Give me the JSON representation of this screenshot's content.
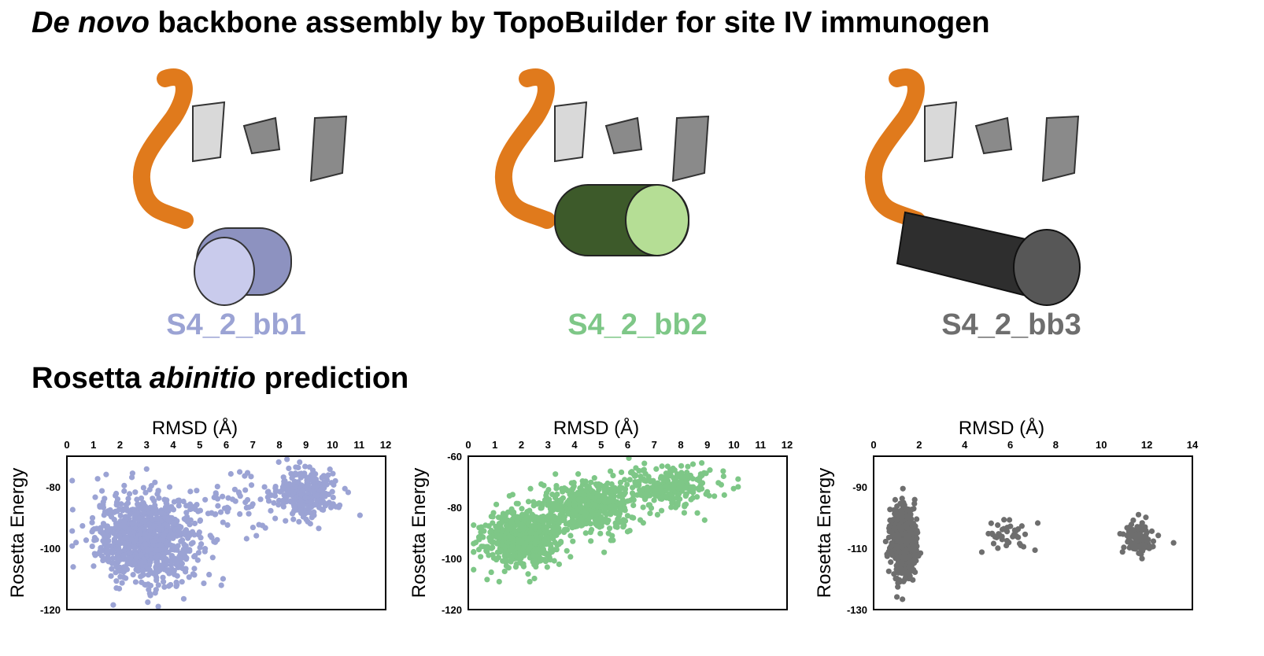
{
  "title": {
    "italic": "De novo",
    "rest": " backbone assembly by TopoBuilder for site IV immunogen"
  },
  "subtitle": {
    "prefix": "Rosetta ",
    "italic": "abinitio",
    "suffix": " prediction"
  },
  "backbones": [
    {
      "label": "S4_2_bb1",
      "color": "#9ba3d4",
      "helix_color": "#a9aedb"
    },
    {
      "label": "S4_2_bb2",
      "color": "#7ec787",
      "helix_color": "#3d5a2a"
    },
    {
      "label": "S4_2_bb3",
      "color": "#6e6e6e",
      "helix_color": "#2e2e2e"
    }
  ],
  "colors": {
    "strand_orange": "#e07a1c",
    "strand_gray": "#9a9a9a"
  },
  "chart_data": [
    {
      "type": "scatter",
      "xlabel": "RMSD (Å)",
      "ylabel": "Rosetta Energy",
      "xlim": [
        0,
        12
      ],
      "ylim": [
        -120,
        -70
      ],
      "xticks": [
        0,
        1,
        2,
        3,
        4,
        5,
        6,
        7,
        8,
        9,
        10,
        11,
        12
      ],
      "yticks": [
        -80,
        -100,
        -120
      ],
      "color": "#9ba3d4",
      "clusters": [
        {
          "x_center": 3.0,
          "x_spread": 1.6,
          "y_center": -97,
          "y_spread": 12,
          "n": 900
        },
        {
          "x_center": 9.0,
          "x_spread": 1.0,
          "y_center": -82,
          "y_spread": 7,
          "n": 260
        },
        {
          "x_center": 6.2,
          "x_spread": 1.6,
          "y_center": -86,
          "y_spread": 8,
          "n": 60
        }
      ]
    },
    {
      "type": "scatter",
      "xlabel": "RMSD (Å)",
      "ylabel": "Rosetta Energy",
      "xlim": [
        0,
        12
      ],
      "ylim": [
        -120,
        -60
      ],
      "xticks": [
        0,
        1,
        2,
        3,
        4,
        5,
        6,
        7,
        8,
        9,
        10,
        11,
        12
      ],
      "yticks": [
        -60,
        -80,
        -100,
        -120
      ],
      "color": "#7ec787",
      "clusters": [
        {
          "x_center": 2.0,
          "x_spread": 1.2,
          "y_center": -92,
          "y_spread": 9,
          "n": 600
        },
        {
          "x_center": 4.5,
          "x_spread": 1.5,
          "y_center": -80,
          "y_spread": 8,
          "n": 500
        },
        {
          "x_center": 7.5,
          "x_spread": 1.6,
          "y_center": -72,
          "y_spread": 7,
          "n": 250
        }
      ]
    },
    {
      "type": "scatter",
      "xlabel": "RMSD (Å)",
      "ylabel": "Rosetta Energy",
      "xlim": [
        0,
        14
      ],
      "ylim": [
        -130,
        -80
      ],
      "xticks": [
        0,
        2,
        4,
        6,
        8,
        10,
        12,
        14
      ],
      "yticks": [
        -90,
        -110,
        -130
      ],
      "color": "#6e6e6e",
      "clusters": [
        {
          "x_center": 1.3,
          "x_spread": 0.45,
          "y_center": -108,
          "y_spread": 9,
          "n": 700
        },
        {
          "x_center": 6.0,
          "x_spread": 0.9,
          "y_center": -106,
          "y_spread": 5,
          "n": 40
        },
        {
          "x_center": 11.7,
          "x_spread": 0.6,
          "y_center": -107,
          "y_spread": 5,
          "n": 110
        }
      ]
    }
  ]
}
